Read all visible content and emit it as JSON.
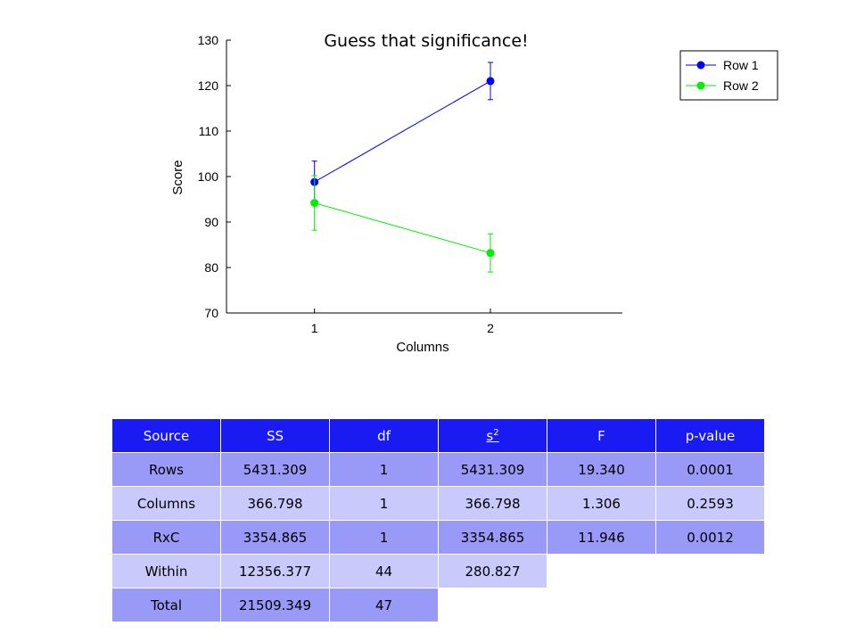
{
  "chart_data": {
    "type": "line",
    "title": "Guess that significance!",
    "xlabel": "Columns",
    "ylabel": "Score",
    "x": [
      1,
      2
    ],
    "xlim": [
      0.5,
      2.75
    ],
    "ylim": [
      70,
      130
    ],
    "yticks": [
      70,
      80,
      90,
      100,
      110,
      120,
      130
    ],
    "xticks": [
      1,
      2
    ],
    "grid": false,
    "legend_position": "top-right",
    "series": [
      {
        "name": "Row 1",
        "color": "#0000ff",
        "values": [
          98.8,
          121.0
        ],
        "errors": [
          4.6,
          4.1
        ]
      },
      {
        "name": "Row 2",
        "color": "#00ee00",
        "values": [
          94.2,
          83.2
        ],
        "errors": [
          6.0,
          4.2
        ]
      }
    ]
  },
  "table": {
    "headers": [
      "Source",
      "SS",
      "df",
      "s",
      "F",
      "p-value"
    ],
    "header_superscript": "2",
    "rows": [
      [
        "Rows",
        "5431.309",
        "1",
        "5431.309",
        "19.340",
        "0.0001"
      ],
      [
        "Columns",
        "366.798",
        "1",
        "366.798",
        "1.306",
        "0.2593"
      ],
      [
        "RxC",
        "3354.865",
        "1",
        "3354.865",
        "11.946",
        "0.0012"
      ],
      [
        "Within",
        "12356.377",
        "44",
        "280.827",
        "",
        ""
      ],
      [
        "Total",
        "21509.349",
        "47",
        "",
        "",
        ""
      ]
    ],
    "significant_color": "#ff0000"
  }
}
